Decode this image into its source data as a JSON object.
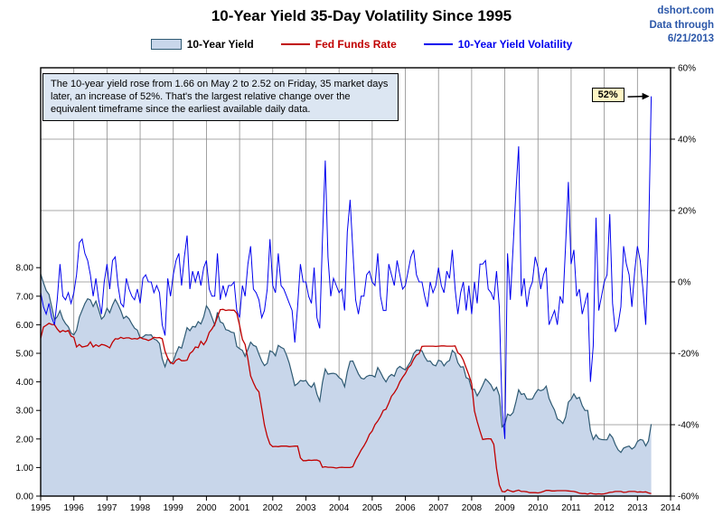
{
  "header": {
    "title": "10-Year Yield 35-Day Volatility Since 1995",
    "source": "dshort.com",
    "data_through_label": "Data through",
    "data_through_date": "6/21/2013",
    "accent_color": "#2B57A9"
  },
  "legend": [
    {
      "label": "10-Year Yield",
      "type": "area",
      "fill": "#C8D6EA",
      "stroke": "#2F5A73",
      "text_color": "#000000"
    },
    {
      "label": "Fed Funds Rate",
      "type": "line",
      "stroke": "#C00000",
      "text_color": "#C00000"
    },
    {
      "label": "10-Year Yield Volatility",
      "type": "line",
      "stroke": "#0000EE",
      "text_color": "#0000EE"
    }
  ],
  "annotation": {
    "text": "The 10-year yield rose from 1.66 on May 2 to 2.52 on Friday, 35 market days later, an increase of 52%. That's the largest relative change over the equivalent timeframe since the earliest available daily data.",
    "bg": "#DCE6F2",
    "border": "#000000"
  },
  "callout": {
    "label": "52%",
    "bg": "#FEF5C3",
    "border": "#000000"
  },
  "chart_data": {
    "type": "line",
    "title": "10-Year Yield 35-Day Volatility Since 1995",
    "x_start": 1995,
    "interval": "monthly",
    "data_through": "6/21/2013",
    "x_range": [
      1995,
      2014
    ],
    "x_ticks": [
      1995,
      1996,
      1997,
      1998,
      1999,
      2000,
      2001,
      2002,
      2003,
      2004,
      2005,
      2006,
      2007,
      2008,
      2009,
      2010,
      2011,
      2012,
      2013,
      2014
    ],
    "y_left_full_range": [
      0,
      15
    ],
    "y_left_ticks": [
      {
        "v": 8,
        "label": "8.00"
      },
      {
        "v": 7,
        "label": "7.00"
      },
      {
        "v": 6,
        "label": "6.00"
      },
      {
        "v": 5,
        "label": "5.00"
      },
      {
        "v": 4,
        "label": "4.00"
      },
      {
        "v": 3,
        "label": "3.00"
      },
      {
        "v": 2,
        "label": "2.00"
      },
      {
        "v": 1,
        "label": "1.00"
      },
      {
        "v": 0,
        "label": "0.00"
      }
    ],
    "y_right_range": [
      -60,
      60
    ],
    "y_right_ticks": [
      {
        "v": 60,
        "label": "60%"
      },
      {
        "v": 40,
        "label": "40%"
      },
      {
        "v": 20,
        "label": "20%"
      },
      {
        "v": 0,
        "label": "0%"
      },
      {
        "v": -20,
        "label": "-20%"
      },
      {
        "v": -40,
        "label": "-40%"
      },
      {
        "v": -60,
        "label": "-60%"
      }
    ],
    "grid": true,
    "grid_color": "#8C8C8C",
    "series": [
      {
        "name": "10-Year Yield",
        "axis": "left",
        "style": "area",
        "fill": "#C8D6EA",
        "color": "#2F5A73",
        "values": [
          7.78,
          7.47,
          7.2,
          7.06,
          6.63,
          6.17,
          6.28,
          6.49,
          6.2,
          6.04,
          5.93,
          5.71,
          5.65,
          5.81,
          6.27,
          6.51,
          6.74,
          6.91,
          6.87,
          6.64,
          6.83,
          6.53,
          6.2,
          6.3,
          6.58,
          6.42,
          6.69,
          6.89,
          6.71,
          6.49,
          6.22,
          6.3,
          6.21,
          6.03,
          5.88,
          5.81,
          5.54,
          5.57,
          5.65,
          5.64,
          5.65,
          5.5,
          5.46,
          5.34,
          4.81,
          4.53,
          4.83,
          4.65,
          4.72,
          5.0,
          5.23,
          5.18,
          5.54,
          5.9,
          5.79,
          5.94,
          5.92,
          6.11,
          6.03,
          6.28,
          6.66,
          6.52,
          6.26,
          5.99,
          6.44,
          6.1,
          6.05,
          5.83,
          5.8,
          5.74,
          5.72,
          5.24,
          5.16,
          5.1,
          4.89,
          5.14,
          5.39,
          5.28,
          5.24,
          4.97,
          4.73,
          4.57,
          4.65,
          5.09,
          5.04,
          4.91,
          5.28,
          5.21,
          5.16,
          4.93,
          4.65,
          4.26,
          3.87,
          3.94,
          4.05,
          4.03,
          4.05,
          3.9,
          3.81,
          3.96,
          3.57,
          3.33,
          3.98,
          4.45,
          4.27,
          4.29,
          4.3,
          4.27,
          4.15,
          4.08,
          3.83,
          4.35,
          4.72,
          4.73,
          4.5,
          4.28,
          4.13,
          4.1,
          4.19,
          4.23,
          4.22,
          4.17,
          4.5,
          4.34,
          4.14,
          4.0,
          4.18,
          4.26,
          4.2,
          4.46,
          4.54,
          4.47,
          4.42,
          4.57,
          4.72,
          4.99,
          5.11,
          5.11,
          5.09,
          4.88,
          4.72,
          4.73,
          4.6,
          4.56,
          4.76,
          4.72,
          4.56,
          4.69,
          4.75,
          5.1,
          5.0,
          4.67,
          4.52,
          4.53,
          4.15,
          4.1,
          3.74,
          3.74,
          3.51,
          3.68,
          3.88,
          4.1,
          4.01,
          3.89,
          3.69,
          3.81,
          3.53,
          2.42,
          2.52,
          2.87,
          2.82,
          2.93,
          3.29,
          3.72,
          3.56,
          3.59,
          3.4,
          3.39,
          3.4,
          3.59,
          3.73,
          3.69,
          3.73,
          3.85,
          3.42,
          3.2,
          3.01,
          2.7,
          2.65,
          2.54,
          2.76,
          3.29,
          3.39,
          3.58,
          3.41,
          3.46,
          3.17,
          3.0,
          3.0,
          2.3,
          1.98,
          2.15,
          2.01,
          1.98,
          1.97,
          1.97,
          2.17,
          2.05,
          1.8,
          1.62,
          1.53,
          1.68,
          1.72,
          1.75,
          1.65,
          1.72,
          1.91,
          1.98,
          1.96,
          1.76,
          1.93,
          2.52
        ]
      },
      {
        "name": "Fed Funds Rate",
        "axis": "left",
        "style": "line",
        "color": "#C00000",
        "values": [
          5.53,
          5.92,
          5.98,
          6.05,
          6.01,
          6.0,
          5.85,
          5.74,
          5.8,
          5.76,
          5.8,
          5.6,
          5.56,
          5.22,
          5.31,
          5.22,
          5.24,
          5.27,
          5.4,
          5.22,
          5.3,
          5.24,
          5.31,
          5.29,
          5.25,
          5.19,
          5.39,
          5.51,
          5.5,
          5.56,
          5.52,
          5.54,
          5.54,
          5.5,
          5.52,
          5.5,
          5.56,
          5.51,
          5.49,
          5.45,
          5.49,
          5.56,
          5.54,
          5.55,
          5.51,
          5.07,
          4.83,
          4.68,
          4.63,
          4.76,
          4.81,
          4.74,
          4.74,
          4.76,
          4.99,
          5.07,
          5.22,
          5.2,
          5.42,
          5.3,
          5.45,
          5.73,
          5.85,
          6.02,
          6.27,
          6.53,
          6.54,
          6.5,
          6.52,
          6.51,
          6.51,
          6.4,
          5.98,
          5.49,
          5.31,
          4.8,
          4.21,
          3.97,
          3.77,
          3.65,
          3.07,
          2.49,
          2.09,
          1.82,
          1.73,
          1.74,
          1.73,
          1.75,
          1.75,
          1.75,
          1.73,
          1.74,
          1.75,
          1.75,
          1.34,
          1.24,
          1.24,
          1.26,
          1.25,
          1.26,
          1.26,
          1.22,
          1.01,
          1.03,
          1.01,
          1.01,
          1.0,
          0.98,
          1.0,
          1.01,
          1.0,
          1.0,
          1.0,
          1.03,
          1.26,
          1.43,
          1.61,
          1.76,
          1.93,
          2.16,
          2.28,
          2.5,
          2.63,
          2.79,
          3.0,
          3.04,
          3.26,
          3.5,
          3.62,
          3.78,
          4.0,
          4.16,
          4.29,
          4.49,
          4.59,
          4.79,
          4.94,
          4.99,
          5.24,
          5.25,
          5.25,
          5.25,
          5.25,
          5.24,
          5.25,
          5.26,
          5.26,
          5.25,
          5.25,
          5.25,
          5.26,
          5.02,
          4.94,
          4.76,
          4.49,
          4.24,
          3.94,
          2.98,
          2.61,
          2.28,
          1.98,
          2.0,
          2.01,
          2.0,
          1.81,
          0.97,
          0.39,
          0.16,
          0.15,
          0.22,
          0.18,
          0.15,
          0.18,
          0.21,
          0.16,
          0.16,
          0.15,
          0.12,
          0.12,
          0.12,
          0.11,
          0.13,
          0.16,
          0.2,
          0.2,
          0.18,
          0.18,
          0.19,
          0.19,
          0.19,
          0.19,
          0.18,
          0.17,
          0.16,
          0.14,
          0.1,
          0.09,
          0.09,
          0.07,
          0.1,
          0.08,
          0.07,
          0.08,
          0.07,
          0.08,
          0.1,
          0.13,
          0.14,
          0.16,
          0.16,
          0.16,
          0.13,
          0.14,
          0.16,
          0.16,
          0.16,
          0.14,
          0.15,
          0.14,
          0.15,
          0.11,
          0.09
        ]
      },
      {
        "name": "10-Year Yield Volatility",
        "axis": "right",
        "style": "line",
        "unit": "%",
        "color": "#0000EE",
        "values": [
          -3,
          -7,
          -9,
          -6,
          -10,
          -12,
          -5,
          5,
          -4,
          -5,
          -3,
          -6,
          -3,
          2,
          11,
          12,
          8,
          6,
          2,
          -4,
          1,
          -5,
          -9,
          0,
          5,
          -2,
          6,
          7,
          -1,
          -6,
          -7,
          1,
          -2,
          -4,
          -5,
          -2,
          -6,
          1,
          2,
          0,
          0,
          -3,
          -1,
          -3,
          -12,
          -15,
          1,
          -4,
          2,
          6,
          8,
          -1,
          7,
          13,
          -2,
          3,
          0,
          3,
          -1,
          4,
          6,
          -2,
          -4,
          -4,
          8,
          -5,
          -1,
          -4,
          -1,
          -1,
          0,
          -8,
          -10,
          -1,
          -4,
          5,
          10,
          -2,
          -3,
          -5,
          -10,
          -8,
          -2,
          12,
          -1,
          -3,
          8,
          -1,
          -2,
          -4,
          -6,
          -8,
          -17,
          -7,
          5,
          0,
          0,
          -4,
          -6,
          4,
          -10,
          -13,
          12,
          34,
          7,
          -4,
          1,
          -1,
          -3,
          -2,
          -8,
          14,
          23,
          9,
          -5,
          -9,
          -4,
          -4,
          2,
          3,
          0,
          -1,
          8,
          -4,
          -8,
          -8,
          5,
          2,
          -1,
          6,
          2,
          -2,
          -1,
          3,
          7,
          9,
          2,
          0,
          0,
          -4,
          -7,
          0,
          -3,
          -1,
          4,
          -1,
          -3,
          3,
          1,
          9,
          -2,
          -9,
          -3,
          0,
          -8,
          -1,
          -9,
          0,
          -6,
          5,
          5,
          6,
          -2,
          -3,
          -5,
          3,
          -7,
          -35,
          -44,
          8,
          -5,
          10,
          25,
          38,
          -4,
          1,
          -7,
          -2,
          0,
          7,
          4,
          -2,
          2,
          4,
          -12,
          -10,
          -8,
          -12,
          -4,
          -6,
          10,
          28,
          5,
          9,
          -4,
          -2,
          -9,
          -6,
          -3,
          -28,
          -18,
          18,
          -8,
          -4,
          0,
          2,
          19,
          -6,
          -14,
          -12,
          -7,
          10,
          5,
          2,
          -7,
          3,
          10,
          6,
          -2,
          -12,
          10,
          52
        ]
      }
    ]
  }
}
